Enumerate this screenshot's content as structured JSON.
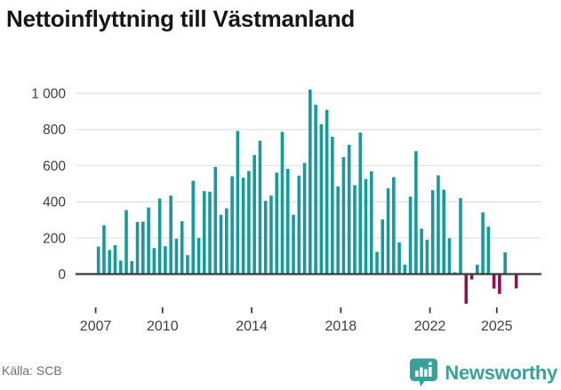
{
  "title": "Nettoinflyttning till Västmanland",
  "source": "Källa: SCB",
  "brand": {
    "name": "Newsworthy"
  },
  "colors": {
    "positive_bar": "#189a9b",
    "negative_bar": "#8e1152",
    "axis": "#3a3a3a",
    "grid": "#e4e4e4",
    "tick_label": "#3f3f3f",
    "brand_teal": "#38a29a",
    "background": "#ffffff"
  },
  "chart_data": {
    "type": "bar",
    "title": "Nettoinflyttning till Västmanland",
    "frequency": "quarterly",
    "start_year": 2007,
    "start_quarter": 1,
    "values": [
      152,
      270,
      133,
      160,
      75,
      354,
      72,
      288,
      290,
      368,
      144,
      418,
      154,
      434,
      195,
      292,
      105,
      516,
      200,
      459,
      456,
      593,
      328,
      364,
      541,
      792,
      533,
      570,
      659,
      738,
      405,
      434,
      561,
      787,
      582,
      328,
      544,
      615,
      1021,
      937,
      829,
      909,
      760,
      485,
      647,
      715,
      492,
      783,
      526,
      569,
      123,
      302,
      475,
      536,
      175,
      52,
      429,
      680,
      251,
      190,
      464,
      546,
      467,
      198,
      10,
      420,
      -164,
      -30,
      52,
      341,
      262,
      -80,
      -110,
      120,
      0,
      -79
    ],
    "x_tick_years": [
      2007,
      2010,
      2014,
      2018,
      2022,
      2025
    ],
    "x_tick_labels": [
      "2007",
      "2010",
      "2014",
      "2018",
      "2022",
      "2025"
    ],
    "y_ticks": [
      0,
      200,
      400,
      600,
      800,
      1000
    ],
    "y_tick_labels": [
      "0",
      "200",
      "400",
      "600",
      "800",
      "1 000"
    ],
    "ylim": [
      -200,
      1080
    ],
    "grid": true,
    "legend": false
  }
}
